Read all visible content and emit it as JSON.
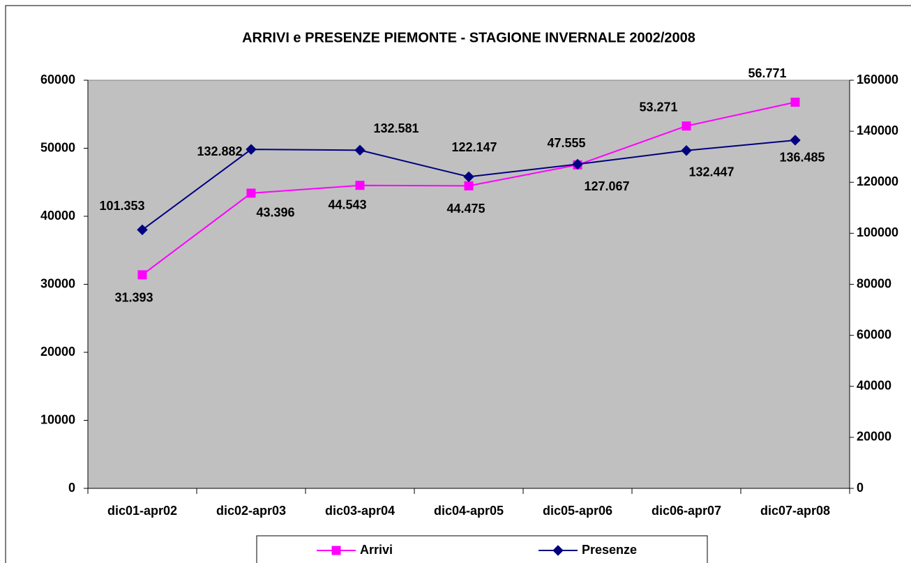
{
  "chart_data": {
    "type": "line",
    "title": "ARRIVI e PRESENZE PIEMONTE - STAGIONE INVERNALE 2002/2008",
    "categories": [
      "dic01-apr02",
      "dic02-apr03",
      "dic03-apr04",
      "dic04-apr05",
      "dic05-apr06",
      "dic06-apr07",
      "dic07-apr08"
    ],
    "series": [
      {
        "name": "Arrivi",
        "color": "#ff00ff",
        "marker": "square",
        "values": [
          31393,
          43396,
          44543,
          44475,
          47555,
          53271,
          56771
        ],
        "value_labels": [
          "31.393",
          "43.396",
          "44.543",
          "44.475",
          "47.555",
          "53.271",
          "56.771"
        ]
      },
      {
        "name": "Presenze",
        "color": "#000080",
        "marker": "diamond",
        "axis": "y2",
        "values": [
          101353,
          132882,
          132581,
          122147,
          127067,
          132447,
          136485
        ],
        "value_labels": [
          "101.353",
          "132.882",
          "132.581",
          "122.147",
          "127.067",
          "132.447",
          "136.485"
        ]
      }
    ],
    "ylim": [
      0,
      60000
    ],
    "yticks": [
      0,
      10000,
      20000,
      30000,
      40000,
      50000,
      60000
    ],
    "y2lim": [
      0,
      160000
    ],
    "y2ticks": [
      0,
      20000,
      40000,
      60000,
      80000,
      100000,
      120000,
      140000,
      160000
    ],
    "legend": "bottom"
  }
}
